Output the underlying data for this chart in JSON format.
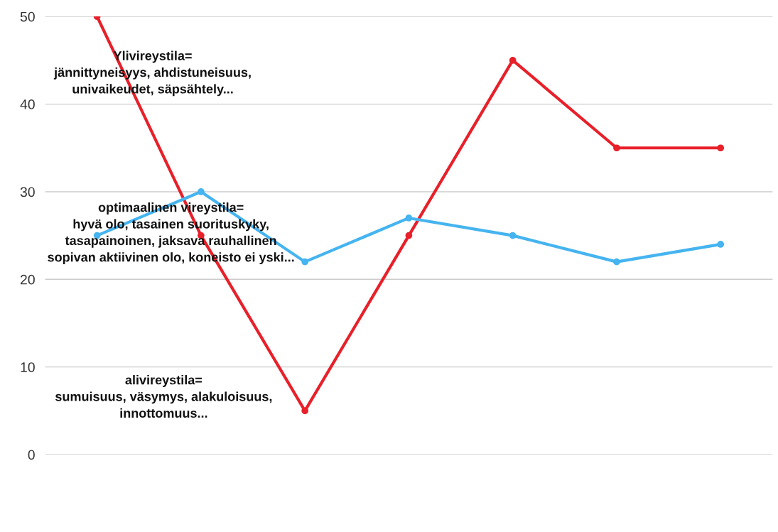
{
  "chart_data": {
    "type": "line",
    "categories": [
      null,
      null,
      null,
      null,
      null,
      null,
      null
    ],
    "series": [
      {
        "color": "#e8202a",
        "values": [
          50,
          25,
          5,
          25,
          45,
          35,
          35
        ]
      },
      {
        "color": "#45b4f0",
        "values": [
          25,
          30,
          22,
          27,
          25,
          22,
          24
        ]
      }
    ],
    "ylim": [
      0,
      50
    ],
    "yticks": [
      0,
      10,
      20,
      30,
      40,
      50
    ],
    "grid": "y",
    "marker": "circle",
    "line_style": "solid",
    "annotations": [
      "Ylivireystila=\njännittyneisyys, ahdistuneisuus,\nunivaikeudet, säpsähtely...",
      "optimaalinen vireystila=\nhyvä olo, tasainen suorituskyky,\ntasapainoinen, jaksava rauhallinen\nsopivan aktiivinen olo, koneisto ei yski...",
      "alivireystila=\nsumuisuus, väsymys, alakuloisuus,\ninnottomuus..."
    ]
  }
}
